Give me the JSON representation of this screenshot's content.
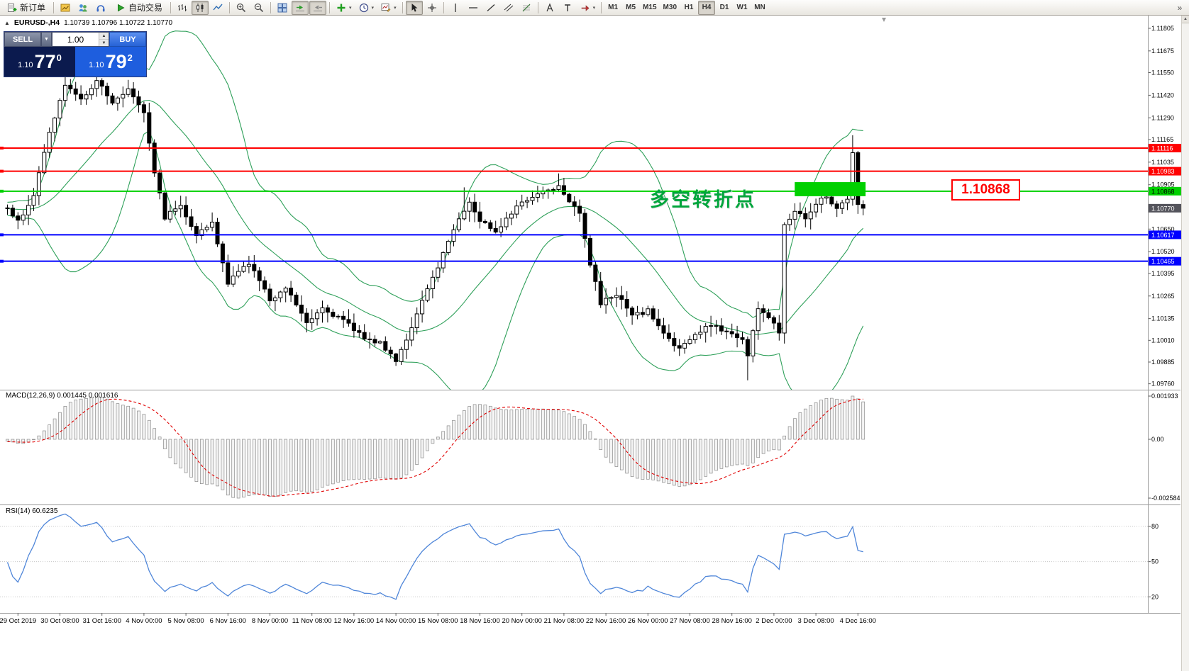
{
  "toolbar": {
    "new_order_label": "新订单",
    "autotrade_label": "自动交易",
    "timeframes": [
      "M1",
      "M5",
      "M15",
      "M30",
      "H1",
      "H4",
      "D1",
      "W1",
      "MN"
    ],
    "active_timeframe": "H4",
    "overflow_glyph": "»"
  },
  "chart_header": {
    "one_click_toggle": "▲",
    "symbol": "EURUSD-,H4",
    "ohlc_text": "1.10739 1.10796 1.10722 1.10770"
  },
  "order_panel": {
    "sell_label": "SELL",
    "buy_label": "BUY",
    "volume": "1.00",
    "sell_price_small": "1.10",
    "sell_price_big": "77",
    "sell_price_sup": "0",
    "buy_price_small": "1.10",
    "buy_price_big": "79",
    "buy_price_sup": "2"
  },
  "annotation_text": "多空转折点",
  "callout_text": "1.10868",
  "indicator_labels": {
    "macd": "MACD(12,26,9) 0.001445 0.001616",
    "rsi": "RSI(14) 60.6235"
  },
  "chart_data": {
    "type": "candlestick",
    "symbol": "EURUSD",
    "timeframe": "H4",
    "current_bid": "1.10770",
    "current_price": 1.1077,
    "price_scale": [
      "1.11805",
      "1.11675",
      "1.11550",
      "1.11420",
      "1.11290",
      "1.11165",
      "1.11035",
      "1.10905",
      "1.10650",
      "1.10520",
      "1.10395",
      "1.10265",
      "1.10135",
      "1.10010",
      "1.09885",
      "1.09760"
    ],
    "hlines": [
      {
        "price": 1.11116,
        "label": "1.11116",
        "color": "#ff0000",
        "text": "#ffffff",
        "width": 2
      },
      {
        "price": 1.10983,
        "label": "1.10983",
        "color": "#ff0000",
        "text": "#ffffff",
        "width": 2
      },
      {
        "price": 1.10868,
        "label": "1.10868",
        "color": "#00d000",
        "text": "#000000",
        "width": 2
      },
      {
        "price": 1.10617,
        "label": "1.10617",
        "color": "#0000ff",
        "text": "#ffffff",
        "width": 2
      },
      {
        "price": 1.10465,
        "label": "1.10465",
        "color": "#0000ff",
        "text": "#ffffff",
        "width": 2
      }
    ],
    "time_labels": [
      {
        "i": 2,
        "t": "29 Oct 2019"
      },
      {
        "i": 10,
        "t": "30 Oct 08:00"
      },
      {
        "i": 18,
        "t": "31 Oct 16:00"
      },
      {
        "i": 26,
        "t": "4 Nov 00:00"
      },
      {
        "i": 34,
        "t": "5 Nov 08:00"
      },
      {
        "i": 42,
        "t": "6 Nov 16:00"
      },
      {
        "i": 50,
        "t": "8 Nov 00:00"
      },
      {
        "i": 58,
        "t": "11 Nov 08:00"
      },
      {
        "i": 66,
        "t": "12 Nov 16:00"
      },
      {
        "i": 74,
        "t": "14 Nov 00:00"
      },
      {
        "i": 82,
        "t": "15 Nov 08:00"
      },
      {
        "i": 90,
        "t": "18 Nov 16:00"
      },
      {
        "i": 98,
        "t": "20 Nov 00:00"
      },
      {
        "i": 106,
        "t": "21 Nov 08:00"
      },
      {
        "i": 114,
        "t": "22 Nov 16:00"
      },
      {
        "i": 122,
        "t": "26 Nov 00:00"
      },
      {
        "i": 130,
        "t": "27 Nov 08:00"
      },
      {
        "i": 138,
        "t": "28 Nov 16:00"
      },
      {
        "i": 146,
        "t": "2 Dec 00:00"
      },
      {
        "i": 154,
        "t": "3 Dec 08:00"
      },
      {
        "i": 162,
        "t": "4 Dec 16:00"
      }
    ],
    "macd_scale": {
      "max_label": "0.001933",
      "zero_label": "0.00",
      "min_label": "-0.002584"
    },
    "rsi_levels": [
      {
        "v": 80,
        "label": "80"
      },
      {
        "v": 50,
        "label": "50"
      },
      {
        "v": 20,
        "label": "20"
      }
    ],
    "bollinger": {
      "period": 20,
      "deviation": 2
    },
    "visible_bars": 164,
    "warmup_bars": 36,
    "noise": 0.00028,
    "wick": 0.00055,
    "last_close": 1.1077,
    "price_anchors": [
      [
        -36,
        1.1079
      ],
      [
        -28,
        1.1084
      ],
      [
        -20,
        1.1073
      ],
      [
        -12,
        1.108
      ],
      [
        -6,
        1.1075
      ],
      [
        0,
        1.1078
      ],
      [
        2,
        1.1069
      ],
      [
        5,
        1.1085
      ],
      [
        8,
        1.112
      ],
      [
        11,
        1.1148
      ],
      [
        14,
        1.1139
      ],
      [
        17,
        1.1151
      ],
      [
        20,
        1.1137
      ],
      [
        23,
        1.1146
      ],
      [
        26,
        1.1133
      ],
      [
        28,
        1.1098
      ],
      [
        30,
        1.1072
      ],
      [
        33,
        1.1079
      ],
      [
        36,
        1.1062
      ],
      [
        39,
        1.1068
      ],
      [
        42,
        1.1034
      ],
      [
        46,
        1.1046
      ],
      [
        50,
        1.1024
      ],
      [
        53,
        1.1032
      ],
      [
        57,
        1.1012
      ],
      [
        60,
        1.102
      ],
      [
        64,
        1.1012
      ],
      [
        68,
        1.1003
      ],
      [
        71,
        1.0999
      ],
      [
        74,
        1.099
      ],
      [
        77,
        1.1008
      ],
      [
        80,
        1.103
      ],
      [
        83,
        1.1051
      ],
      [
        86,
        1.1072
      ],
      [
        88,
        1.108
      ],
      [
        90,
        1.107
      ],
      [
        93,
        1.1064
      ],
      [
        96,
        1.1075
      ],
      [
        99,
        1.1082
      ],
      [
        102,
        1.1087
      ],
      [
        105,
        1.109
      ],
      [
        107,
        1.1082
      ],
      [
        109,
        1.1075
      ],
      [
        111,
        1.1045
      ],
      [
        113,
        1.1022
      ],
      [
        116,
        1.1028
      ],
      [
        119,
        1.1015
      ],
      [
        122,
        1.1018
      ],
      [
        125,
        1.1005
      ],
      [
        128,
        1.0996
      ],
      [
        131,
        1.1004
      ],
      [
        134,
        1.101
      ],
      [
        137,
        1.1006
      ],
      [
        140,
        1.1002
      ],
      [
        141,
        1.0992
      ],
      [
        143,
        1.102
      ],
      [
        145,
        1.1014
      ],
      [
        147,
        1.1006
      ],
      [
        148,
        1.1068
      ],
      [
        150,
        1.1076
      ],
      [
        152,
        1.1072
      ],
      [
        154,
        1.108
      ],
      [
        156,
        1.1084
      ],
      [
        158,
        1.1077
      ],
      [
        160,
        1.1082
      ],
      [
        161,
        1.111
      ],
      [
        162,
        1.1078
      ],
      [
        163,
        1.1077
      ]
    ],
    "wick_overrides": [
      {
        "i": 11,
        "high": 1.1158
      },
      {
        "i": 17,
        "high": 1.1157
      },
      {
        "i": 74,
        "low": 1.0987
      },
      {
        "i": 87,
        "high": 1.1089
      },
      {
        "i": 105,
        "high": 1.1097
      },
      {
        "i": 128,
        "low": 1.0992
      },
      {
        "i": 141,
        "low": 1.0978
      },
      {
        "i": 161,
        "high": 1.1119
      }
    ],
    "highlight_box": {
      "i1": 150.3,
      "i2": 163.8,
      "price_top": 1.1092,
      "price_bottom": 1.10839,
      "color": "#00d000"
    },
    "colors": {
      "bull": "#ffffff",
      "bear": "#000000",
      "outline": "#000000",
      "bands": "#2fa05a",
      "macd_bar_fill": "#f3f3f3",
      "macd_bar_stroke": "#8a8a8a",
      "macd_signal": "#e00000",
      "rsi_line": "#4f86d9",
      "current_tag_bg": "#54545c"
    }
  }
}
